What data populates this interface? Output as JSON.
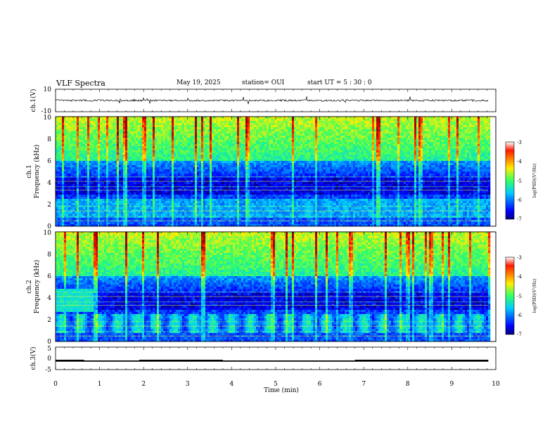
{
  "header": {
    "title": "VLF Spectra",
    "date": "May 19, 2025",
    "station": "station= OUI",
    "start_ut": "start  UT  =   5  : 30 : 0"
  },
  "chart_data": [
    {
      "type": "line",
      "name": "ch1-waveform",
      "ylabel": "ch.1(V)",
      "ylim": [
        -10,
        10
      ],
      "yticks": [
        "10",
        "-10"
      ],
      "xlim": [
        0,
        10
      ],
      "data_xrange": [
        0,
        9.83
      ],
      "baseline": 0,
      "noise_amplitude": 0.8,
      "spike_amplitude": 4
    },
    {
      "type": "heatmap",
      "name": "ch1-spectrogram",
      "ylabel_line1": "ch.1",
      "ylabel_line2": "Frequency  (kHz)",
      "ylim": [
        0,
        10
      ],
      "yticks": [
        "0",
        "2",
        "4",
        "6",
        "8",
        "10"
      ],
      "xlim": [
        0,
        10
      ],
      "data_xrange": [
        0,
        9.83
      ],
      "color_range": [
        -7,
        -3
      ],
      "colorbar_label": "log(PSD)(V²/Hz)",
      "colorbar_ticks": [
        "-3",
        "-4",
        "-5",
        "-6",
        "-7"
      ]
    },
    {
      "type": "heatmap",
      "name": "ch2-spectrogram",
      "ylabel_line1": "ch.2",
      "ylabel_line2": "Frequency  (kHz)",
      "ylim": [
        0,
        10
      ],
      "yticks": [
        "0",
        "2",
        "4",
        "6",
        "8",
        "10"
      ],
      "xlim": [
        0,
        10
      ],
      "data_xrange": [
        0,
        9.83
      ],
      "color_range": [
        -7,
        -3
      ],
      "colorbar_label": "log(PSD)(V²/Hz)",
      "colorbar_ticks": [
        "-3",
        "-4",
        "-5",
        "-6",
        "-7"
      ]
    },
    {
      "type": "line",
      "name": "ch3-signal",
      "ylabel": "ch.3(V)",
      "ylim": [
        -5,
        5
      ],
      "yticks": [
        "5",
        "0",
        "-5"
      ],
      "xlim": [
        0,
        10
      ],
      "data_xrange": [
        0,
        9.83
      ],
      "level_low": -1.2,
      "level_high": -0.9,
      "high_segments": [
        [
          0,
          0.65
        ],
        [
          1.9,
          3.8
        ],
        [
          6.8,
          9.83
        ]
      ]
    }
  ],
  "xaxis": {
    "label": "Time  (min)",
    "ticks": [
      "0",
      "1",
      "2",
      "3",
      "4",
      "5",
      "6",
      "7",
      "8",
      "9",
      "10"
    ]
  }
}
